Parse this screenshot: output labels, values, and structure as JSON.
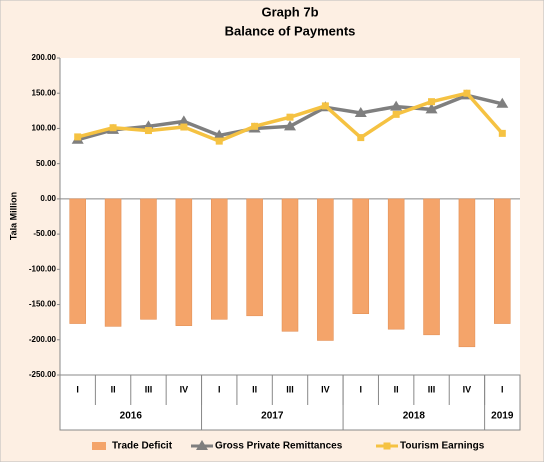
{
  "chart_data": {
    "type": "bar-line",
    "title": "Graph 7b",
    "subtitle": "Balance of Payments",
    "y_label": "Tala Million",
    "categories": [
      "I",
      "II",
      "III",
      "IV",
      "I",
      "II",
      "III",
      "IV",
      "I",
      "II",
      "III",
      "IV",
      "I"
    ],
    "year_groups": [
      {
        "label": "2016",
        "span": 4
      },
      {
        "label": "2017",
        "span": 4
      },
      {
        "label": "2018",
        "span": 4
      },
      {
        "label": "2019",
        "span": 1
      }
    ],
    "series": [
      {
        "name": "Trade Deficit",
        "kind": "bar",
        "color": "#f4a46a",
        "values": [
          -177,
          -181,
          -171,
          -180,
          -171,
          -166,
          -188,
          -201,
          -163,
          -185,
          -193,
          -210,
          -177
        ]
      },
      {
        "name": "Gross Private Remittances",
        "kind": "line",
        "marker": "triangle",
        "color": "#7f7f7f",
        "values": [
          84,
          98,
          103,
          110,
          90,
          100,
          103,
          130,
          122,
          131,
          127,
          147,
          135
        ]
      },
      {
        "name": "Tourism Earnings",
        "kind": "line",
        "marker": "square",
        "color": "#f5c242",
        "values": [
          88,
          101,
          97,
          102,
          82,
          103,
          116,
          132,
          87,
          120,
          138,
          150,
          93
        ]
      }
    ],
    "ylim": [
      -250,
      200
    ],
    "yticks": [
      {
        "value": 200,
        "label": "200.00"
      },
      {
        "value": 150,
        "label": "150.00"
      },
      {
        "value": 100,
        "label": "100.00"
      },
      {
        "value": 50,
        "label": "50.00"
      },
      {
        "value": 0,
        "label": "0.00"
      },
      {
        "value": -50,
        "label": "-50.00"
      },
      {
        "value": -100,
        "label": "-100.00"
      },
      {
        "value": -150,
        "label": "-150.00"
      },
      {
        "value": -200,
        "label": "-200.00"
      },
      {
        "value": -250,
        "label": "-250.00"
      }
    ],
    "grid": false,
    "legend": "bottom"
  }
}
